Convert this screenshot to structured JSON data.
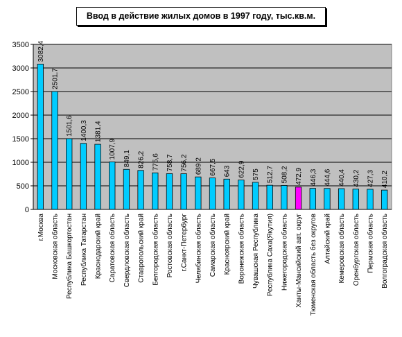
{
  "chart_data": {
    "type": "bar",
    "title": "Ввод в действие жилых домов в 1997 году, тыс.кв.м.",
    "categories": [
      "г.Москва",
      "Московская область",
      "Республика Башкортостан",
      "Республика Татарстан",
      "Краснодарский край",
      "Саратовская область",
      "Свердловская область",
      "Ставропольский край",
      "Белгородская область",
      "Ростовская область",
      "г.Санкт-Петербург",
      "Челябинская область",
      "Самарская область",
      "Красноярский край",
      "Воронежская область",
      "Чувашская Республика",
      "Республика Саха(Якутия)",
      "Нижегородская область",
      "Ханты-Мансийский авт. округ",
      "Тюменская область без округов",
      "Алтайский край",
      "Кемеровская область",
      "Оренбургская область",
      "Пермская область",
      "Волгоградская область"
    ],
    "values": [
      3082.4,
      2501.7,
      1501.6,
      1400.3,
      1381.4,
      1007.9,
      849.1,
      826.2,
      775.6,
      758.7,
      756.2,
      689.2,
      667.5,
      643,
      622.9,
      575,
      512.7,
      508.2,
      472.9,
      446.3,
      444.6,
      440.4,
      430.2,
      427.3,
      410.2
    ],
    "value_labels": [
      "3082,4",
      "2501,7",
      "1501,6",
      "1400,3",
      "1381,4",
      "1007,9",
      "849,1",
      "826,2",
      "775,6",
      "758,7",
      "756,2",
      "689,2",
      "667,5",
      "643",
      "622,9",
      "575",
      "512,7",
      "508,2",
      "472,9",
      "446,3",
      "444,6",
      "440,4",
      "430,2",
      "427,3",
      "410,2"
    ],
    "ylim": [
      0,
      3500
    ],
    "yticks": [
      0,
      500,
      1000,
      1500,
      2000,
      2500,
      3000,
      3500
    ],
    "xlabel": "",
    "ylabel": "",
    "grid": "horizontal",
    "legend": "none",
    "highlight_index": 18,
    "colors": {
      "bar": "#00ccff",
      "highlight": "#ff00ff",
      "plot_background": "#c0c0c0",
      "grid": "#000000"
    }
  }
}
